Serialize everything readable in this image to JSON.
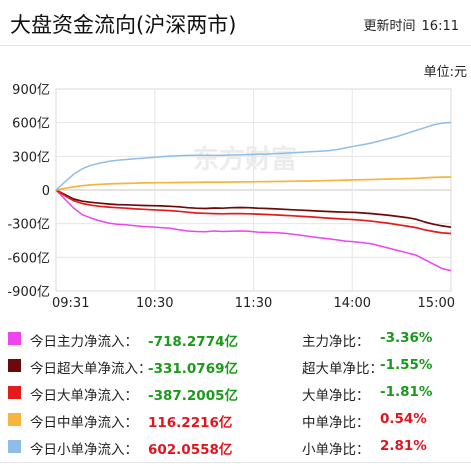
{
  "header": {
    "title": "大盘资金流向(沪深两市)",
    "update_label": "更新时间",
    "update_time": "16:11"
  },
  "unit_label": "单位:元",
  "watermark": "东方财富",
  "chart_data": {
    "type": "line",
    "x_ticks": [
      "09:31",
      "10:30",
      "11:30",
      "14:00",
      "15:00"
    ],
    "y_ticks": [
      "900亿",
      "600亿",
      "300亿",
      "0",
      "-300亿",
      "-600亿",
      "-900亿"
    ],
    "ylim": [
      -900,
      900
    ],
    "y_unit": "亿",
    "grid": true,
    "series": [
      {
        "name": "今日主力净流入",
        "color": "#ee44ee",
        "values": [
          0,
          -80,
          -160,
          -220,
          -250,
          -275,
          -295,
          -305,
          -310,
          -318,
          -325,
          -330,
          -335,
          -340,
          -355,
          -365,
          -370,
          -372,
          -365,
          -370,
          -368,
          -365,
          -368,
          -375,
          -378,
          -380,
          -385,
          -395,
          -405,
          -415,
          -425,
          -435,
          -445,
          -455,
          -462,
          -470,
          -480,
          -500,
          -520,
          -540,
          -560,
          -580,
          -620,
          -660,
          -700,
          -718.28
        ]
      },
      {
        "name": "今日超大单净流入",
        "color": "#6b0a0a",
        "values": [
          0,
          -40,
          -80,
          -100,
          -110,
          -118,
          -125,
          -130,
          -132,
          -135,
          -138,
          -140,
          -142,
          -145,
          -150,
          -158,
          -162,
          -165,
          -160,
          -162,
          -158,
          -156,
          -158,
          -162,
          -165,
          -168,
          -172,
          -176,
          -180,
          -184,
          -188,
          -192,
          -195,
          -198,
          -200,
          -205,
          -210,
          -218,
          -226,
          -236,
          -246,
          -260,
          -285,
          -305,
          -320,
          -331.08
        ]
      },
      {
        "name": "今日大单净流入",
        "color": "#e31b1b",
        "values": [
          0,
          -50,
          -95,
          -120,
          -135,
          -145,
          -152,
          -158,
          -162,
          -168,
          -172,
          -176,
          -180,
          -184,
          -190,
          -198,
          -205,
          -208,
          -210,
          -212,
          -210,
          -210,
          -212,
          -215,
          -218,
          -222,
          -226,
          -230,
          -235,
          -240,
          -245,
          -250,
          -255,
          -260,
          -265,
          -270,
          -278,
          -288,
          -298,
          -310,
          -322,
          -335,
          -355,
          -370,
          -382,
          -387.2
        ]
      },
      {
        "name": "今日中单净流入",
        "color": "#f5b53f",
        "values": [
          0,
          15,
          28,
          38,
          45,
          50,
          54,
          57,
          59,
          61,
          63,
          64,
          65,
          66,
          67,
          68,
          69,
          70,
          70,
          70,
          71,
          72,
          73,
          74,
          75,
          76,
          77,
          78,
          79,
          80,
          82,
          84,
          86,
          88,
          90,
          92,
          94,
          96,
          98,
          100,
          102,
          104,
          108,
          112,
          115,
          116.22
        ]
      },
      {
        "name": "今日小单净流入",
        "color": "#8fbde8",
        "values": [
          0,
          70,
          140,
          190,
          220,
          240,
          255,
          265,
          272,
          278,
          284,
          290,
          296,
          302,
          305,
          308,
          310,
          310,
          308,
          310,
          312,
          314,
          316,
          318,
          320,
          324,
          328,
          332,
          336,
          340,
          345,
          350,
          360,
          375,
          390,
          405,
          420,
          440,
          460,
          480,
          505,
          530,
          555,
          580,
          595,
          602.06
        ]
      }
    ]
  },
  "legend": [
    {
      "label": "今日主力净流入：",
      "value": "-718.2774亿",
      "color": "#ee44ee",
      "ratio_label": "主力净比：",
      "ratio": "-3.36%"
    },
    {
      "label": "今日超大单净流入：",
      "value": "-331.0769亿",
      "color": "#6b0a0a",
      "ratio_label": "超大单净比：",
      "ratio": "-1.55%"
    },
    {
      "label": "今日大单净流入：",
      "value": "-387.2005亿",
      "color": "#e31b1b",
      "ratio_label": "大单净比：",
      "ratio": "-1.81%"
    },
    {
      "label": "今日中单净流入：",
      "value": "116.2216亿",
      "color": "#f5b53f",
      "ratio_label": "中单净比：",
      "ratio": "0.54%"
    },
    {
      "label": "今日小单净流入：",
      "value": "602.0558亿",
      "color": "#8fbde8",
      "ratio_label": "小单净比：",
      "ratio": "2.81%"
    }
  ]
}
